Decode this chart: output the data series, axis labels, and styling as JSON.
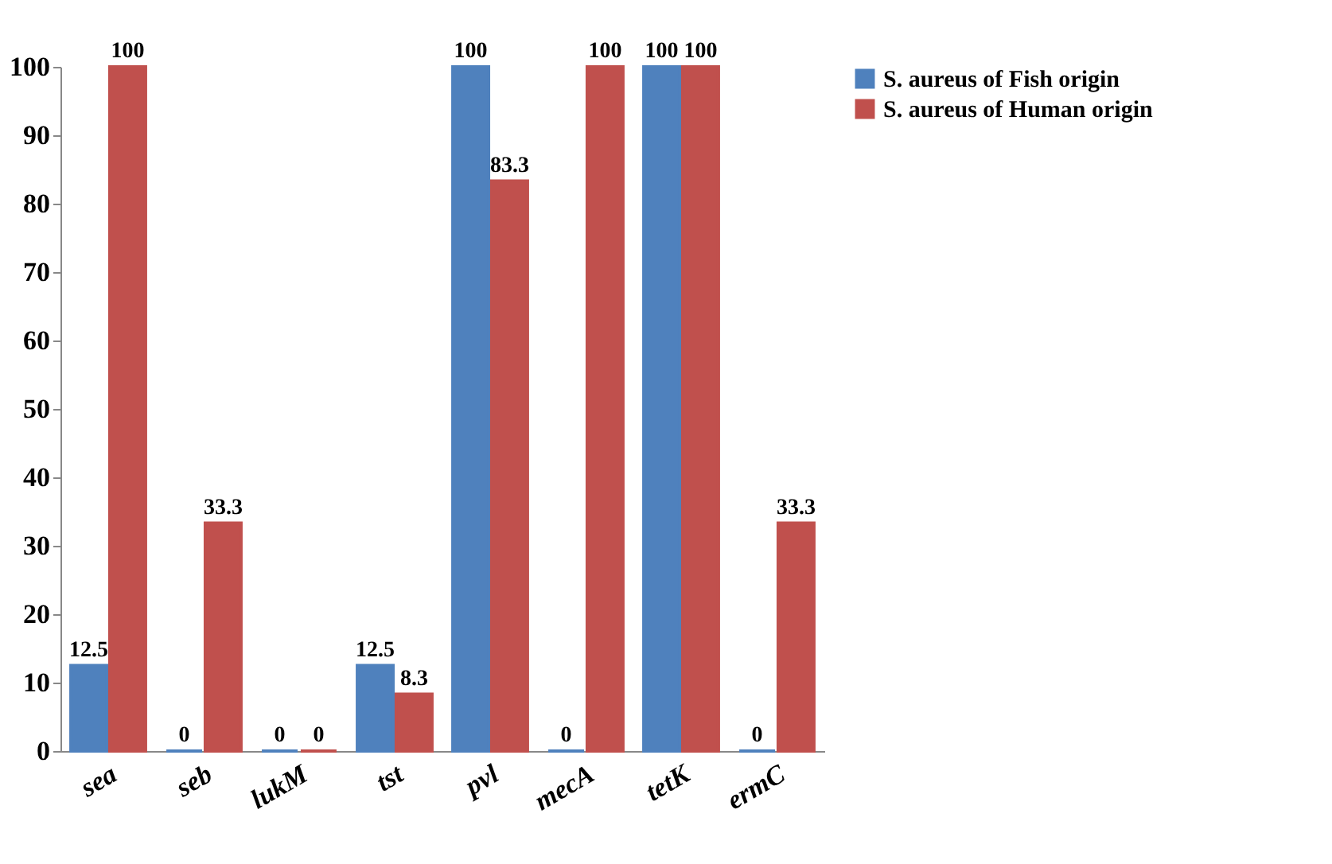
{
  "chart_data": {
    "type": "bar",
    "categories": [
      "sea",
      "seb",
      "lukM",
      "tst",
      "pvl",
      "mecA",
      "tetK",
      "ermC"
    ],
    "series": [
      {
        "name": "S. aureus of Fish origin",
        "color": "#4f81bd",
        "values": [
          12.5,
          0,
          0,
          12.5,
          100,
          0,
          100,
          0
        ]
      },
      {
        "name": "S. aureus of Human origin",
        "color": "#c0504d",
        "values": [
          100,
          33.3,
          0,
          8.3,
          83.3,
          100,
          100,
          33.3
        ]
      }
    ],
    "ylim": [
      0,
      100
    ],
    "yticks": [
      0,
      10,
      20,
      30,
      40,
      50,
      60,
      70,
      80,
      90,
      100
    ],
    "grid": false,
    "legend": "right",
    "data_labels": true
  }
}
